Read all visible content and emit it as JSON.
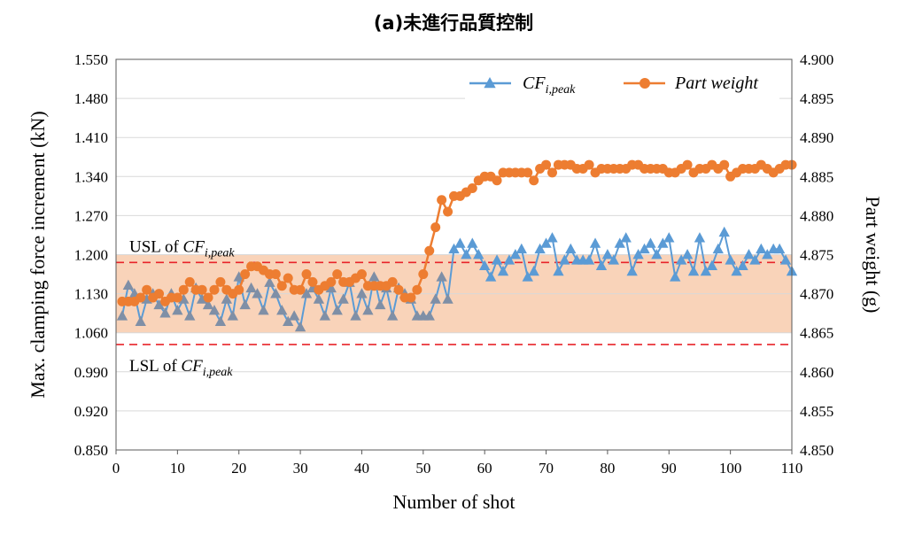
{
  "title": "(a)未進行品質控制",
  "colors": {
    "cf_line": "#5b9bd5",
    "cf_marker": "#7f8fa6",
    "weight": "#ed7d31",
    "band_fill": "#f8cbad",
    "limit_line": "#e8242a",
    "grid": "#d9d9d9"
  },
  "chart_data": {
    "type": "line",
    "xlabel": "Number of shot",
    "ylabel_left": "Max. clamping force increment (kN)",
    "ylabel_right": "Part weight (g)",
    "xlim": [
      0,
      110
    ],
    "x_ticks": [
      "0",
      "10",
      "20",
      "30",
      "40",
      "50",
      "60",
      "70",
      "80",
      "90",
      "100",
      "110"
    ],
    "ylim_left": [
      0.85,
      1.55
    ],
    "y_ticks_left": [
      "0.850",
      "0.920",
      "0.990",
      "1.060",
      "1.130",
      "1.200",
      "1.270",
      "1.340",
      "1.410",
      "1.480",
      "1.550"
    ],
    "ylim_right": [
      4.85,
      4.9
    ],
    "y_ticks_right": [
      "4.850",
      "4.855",
      "4.860",
      "4.865",
      "4.870",
      "4.875",
      "4.880",
      "4.885",
      "4.890",
      "4.895",
      "4.900"
    ],
    "grid": "horizontal",
    "legend_position": "top-right",
    "control_band_left": [
      1.06,
      1.2
    ],
    "usl_right": 4.874,
    "lsl_right": 4.8635,
    "usl_label": {
      "prefix": "USL of ",
      "main": "CF",
      "sub": "i,peak"
    },
    "lsl_label": {
      "prefix": "LSL of ",
      "main": "CF",
      "sub": "i,peak"
    },
    "series": [
      {
        "name": "CF_i,peak",
        "legend": {
          "main": "CF",
          "sub": "i,peak"
        },
        "axis": "left",
        "marker": "triangle",
        "x": [
          1,
          2,
          3,
          4,
          5,
          6,
          7,
          8,
          9,
          10,
          11,
          12,
          13,
          14,
          15,
          16,
          17,
          18,
          19,
          20,
          21,
          22,
          23,
          24,
          25,
          26,
          27,
          28,
          29,
          30,
          31,
          32,
          33,
          34,
          35,
          36,
          37,
          38,
          39,
          40,
          41,
          42,
          43,
          44,
          45,
          46,
          47,
          48,
          49,
          50,
          51,
          52,
          53,
          54,
          55,
          56,
          57,
          58,
          59,
          60,
          61,
          62,
          63,
          64,
          65,
          66,
          67,
          68,
          69,
          70,
          71,
          72,
          73,
          74,
          75,
          76,
          77,
          78,
          79,
          80,
          81,
          82,
          83,
          84,
          85,
          86,
          87,
          88,
          89,
          90,
          91,
          92,
          93,
          94,
          95,
          96,
          97,
          98,
          99,
          100,
          101,
          102,
          103,
          104,
          105,
          106,
          107,
          108,
          109,
          110
        ],
        "values": [
          1.09,
          1.145,
          1.13,
          1.08,
          1.12,
          1.13,
          1.11,
          1.095,
          1.13,
          1.1,
          1.12,
          1.09,
          1.14,
          1.12,
          1.11,
          1.1,
          1.08,
          1.12,
          1.09,
          1.16,
          1.11,
          1.14,
          1.13,
          1.1,
          1.15,
          1.13,
          1.1,
          1.08,
          1.09,
          1.07,
          1.13,
          1.14,
          1.12,
          1.09,
          1.14,
          1.1,
          1.12,
          1.15,
          1.09,
          1.13,
          1.1,
          1.16,
          1.11,
          1.14,
          1.09,
          1.14,
          1.13,
          1.12,
          1.09,
          1.09,
          1.09,
          1.12,
          1.16,
          1.12,
          1.21,
          1.22,
          1.2,
          1.22,
          1.2,
          1.18,
          1.16,
          1.19,
          1.17,
          1.19,
          1.2,
          1.21,
          1.16,
          1.17,
          1.21,
          1.22,
          1.23,
          1.17,
          1.19,
          1.21,
          1.19,
          1.19,
          1.19,
          1.22,
          1.18,
          1.2,
          1.19,
          1.22,
          1.23,
          1.17,
          1.2,
          1.21,
          1.22,
          1.2,
          1.22,
          1.23,
          1.16,
          1.19,
          1.2,
          1.17,
          1.23,
          1.17,
          1.18,
          1.21,
          1.24,
          1.19,
          1.17,
          1.18,
          1.2,
          1.19,
          1.21,
          1.2,
          1.21,
          1.21,
          1.19,
          1.17
        ]
      },
      {
        "name": "Part weight",
        "legend": {
          "main": "Part weight",
          "sub": ""
        },
        "axis": "right",
        "marker": "circle",
        "x": [
          1,
          2,
          3,
          4,
          5,
          6,
          7,
          8,
          9,
          10,
          11,
          12,
          13,
          14,
          15,
          16,
          17,
          18,
          19,
          20,
          21,
          22,
          23,
          24,
          25,
          26,
          27,
          28,
          29,
          30,
          31,
          32,
          33,
          34,
          35,
          36,
          37,
          38,
          39,
          40,
          41,
          42,
          43,
          44,
          45,
          46,
          47,
          48,
          49,
          50,
          51,
          52,
          53,
          54,
          55,
          56,
          57,
          58,
          59,
          60,
          61,
          62,
          63,
          64,
          65,
          66,
          67,
          68,
          69,
          70,
          71,
          72,
          73,
          74,
          75,
          76,
          77,
          78,
          79,
          80,
          81,
          82,
          83,
          84,
          85,
          86,
          87,
          88,
          89,
          90,
          91,
          92,
          93,
          94,
          95,
          96,
          97,
          98,
          99,
          100,
          101,
          102,
          103,
          104,
          105,
          106,
          107,
          108,
          109,
          110
        ],
        "values": [
          4.869,
          4.869,
          4.869,
          4.8695,
          4.8705,
          4.8695,
          4.87,
          4.869,
          4.8695,
          4.8695,
          4.8705,
          4.8715,
          4.8705,
          4.8705,
          4.8695,
          4.8705,
          4.8715,
          4.8705,
          4.87,
          4.8705,
          4.8725,
          4.8735,
          4.8735,
          4.873,
          4.8725,
          4.8725,
          4.871,
          4.872,
          4.8705,
          4.8705,
          4.8725,
          4.8715,
          4.8705,
          4.871,
          4.8715,
          4.8725,
          4.8715,
          4.8715,
          4.872,
          4.8725,
          4.871,
          4.871,
          4.871,
          4.871,
          4.8715,
          4.8705,
          4.8695,
          4.8695,
          4.8705,
          4.8725,
          4.8755,
          4.8785,
          4.882,
          4.8805,
          4.8825,
          4.8825,
          4.883,
          4.8835,
          4.8845,
          4.885,
          4.885,
          4.8845,
          4.8855,
          4.8855,
          4.8855,
          4.8855,
          4.8855,
          4.8845,
          4.886,
          4.8865,
          4.8855,
          4.8865,
          4.8865,
          4.8865,
          4.886,
          4.886,
          4.8865,
          4.8855,
          4.886,
          4.886,
          4.886,
          4.886,
          4.886,
          4.8865,
          4.8865,
          4.886,
          4.886,
          4.886,
          4.886,
          4.8855,
          4.8855,
          4.886,
          4.8865,
          4.8855,
          4.886,
          4.886,
          4.8865,
          4.886,
          4.8865,
          4.885,
          4.8855,
          4.886,
          4.886,
          4.886,
          4.8865,
          4.886,
          4.8855,
          4.886,
          4.8865,
          4.8865
        ]
      }
    ]
  }
}
